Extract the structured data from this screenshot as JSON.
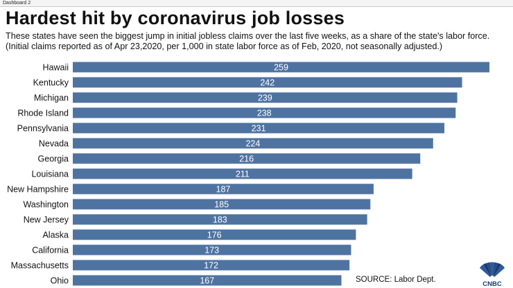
{
  "tab": {
    "label": "Dashboard 2"
  },
  "header": {
    "title": "Hardest hit by coronavirus job losses",
    "subtitle_line1": "These states have seen the biggest jump in initial jobless claims over the last five weeks, as a share of the state's labor force.",
    "subtitle_line2": "(Initial claims reported as of Apr 23,2020, per 1,000 in state labor force as of Feb, 2020, not seasonally adjusted.)"
  },
  "footer": {
    "source": "SOURCE: Labor Dept.",
    "logo_text": "CNBC"
  },
  "colors": {
    "bar": "#4f73a1",
    "value_text": "#ffffff"
  },
  "chart_data": {
    "type": "bar",
    "orientation": "horizontal",
    "categories": [
      "Hawaii",
      "Kentucky",
      "Michigan",
      "Rhode Island",
      "Pennsylvania",
      "Nevada",
      "Georgia",
      "Louisiana",
      "New Hampshire",
      "Washington",
      "New Jersey",
      "Alaska",
      "California",
      "Massachusetts",
      "Ohio"
    ],
    "values": [
      259,
      242,
      239,
      238,
      231,
      224,
      216,
      211,
      187,
      185,
      183,
      176,
      173,
      172,
      167
    ],
    "title": "Hardest hit by coronavirus job losses",
    "xlabel": "",
    "ylabel": "",
    "grid": false,
    "data_labels": true
  }
}
